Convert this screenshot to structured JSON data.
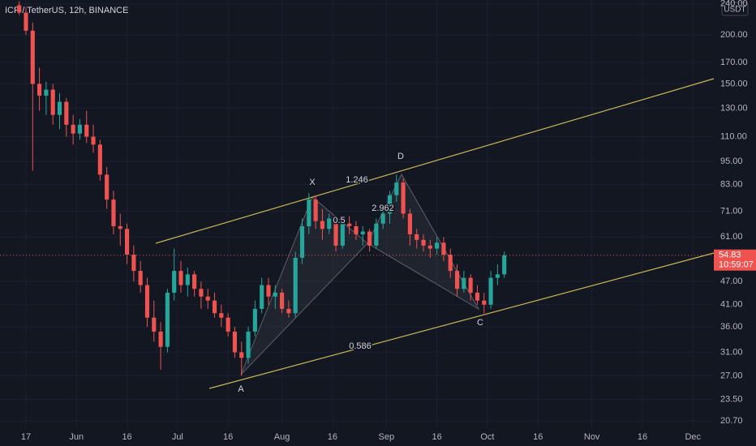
{
  "chart_data": {
    "type": "candlestick",
    "title": "ICP / TetherUS, 12h, BINANCE",
    "currency": "USDT",
    "log_scale": true,
    "grid": true,
    "up_color": "#26a69a",
    "down_color": "#ef5350",
    "x": [
      -2,
      0,
      2,
      4,
      6,
      8,
      10,
      12,
      14,
      16,
      18,
      20,
      22,
      24,
      26,
      28,
      30,
      32,
      34,
      36,
      38,
      40,
      42,
      44,
      46,
      48,
      50,
      52,
      54,
      56,
      58,
      60,
      62,
      64,
      66,
      68,
      70,
      72,
      74,
      76,
      78,
      80,
      82,
      84,
      86,
      88,
      90,
      92,
      94,
      96,
      98,
      100,
      102,
      104,
      106,
      108,
      110,
      112,
      114,
      116,
      118,
      120,
      122,
      124,
      126,
      128,
      130,
      132,
      134,
      136,
      138,
      140,
      142
    ],
    "open": [
      238,
      228,
      205,
      150,
      140,
      145,
      125,
      135,
      118,
      112,
      118,
      110,
      105,
      88,
      76,
      65,
      64,
      55,
      50,
      46,
      38,
      35,
      32,
      44,
      50,
      46,
      49,
      45,
      43,
      42,
      39,
      38,
      35,
      31,
      30,
      35,
      40,
      46,
      43,
      44,
      40,
      39,
      54,
      65,
      76,
      67,
      64,
      68,
      58,
      66,
      65,
      62,
      63,
      58,
      66,
      70,
      78,
      84,
      70,
      62,
      60,
      58,
      57,
      59,
      55,
      50,
      45,
      48,
      44,
      42,
      41,
      48,
      49
    ],
    "high": [
      244,
      235,
      215,
      165,
      152,
      150,
      142,
      138,
      125,
      122,
      128,
      118,
      108,
      92,
      80,
      70,
      66,
      58,
      53,
      48,
      42,
      37,
      45,
      57,
      53,
      51,
      50,
      47,
      45,
      44,
      41,
      39,
      36,
      33,
      36,
      42,
      48,
      48,
      46,
      45,
      42,
      56,
      68,
      79,
      78,
      72,
      70,
      69,
      68,
      69,
      67,
      65,
      64,
      68,
      73,
      80,
      88,
      86,
      72,
      64,
      62,
      60,
      61,
      61,
      57,
      52,
      50,
      49,
      46,
      44,
      50,
      52,
      56
    ],
    "low": [
      225,
      200,
      90,
      128,
      125,
      118,
      115,
      110,
      105,
      108,
      106,
      100,
      85,
      72,
      62,
      58,
      52,
      47,
      44,
      36,
      33,
      28,
      31,
      42,
      44,
      43,
      43,
      40,
      40,
      38,
      36,
      34,
      30,
      27,
      29,
      34,
      39,
      41,
      40,
      39,
      38,
      38,
      52,
      62,
      64,
      60,
      62,
      56,
      57,
      62,
      60,
      58,
      56,
      57,
      64,
      66,
      75,
      68,
      58,
      57,
      56,
      54,
      55,
      53,
      48,
      43,
      44,
      42,
      41,
      39,
      40,
      46,
      48
    ],
    "close": [
      228,
      205,
      150,
      140,
      145,
      125,
      135,
      118,
      112,
      118,
      110,
      105,
      88,
      76,
      65,
      64,
      55,
      50,
      46,
      38,
      35,
      32,
      44,
      50,
      46,
      49,
      45,
      43,
      42,
      39,
      38,
      35,
      31,
      30,
      35,
      40,
      46,
      43,
      44,
      40,
      39,
      54,
      65,
      76,
      67,
      64,
      68,
      58,
      66,
      65,
      62,
      63,
      58,
      66,
      70,
      78,
      84,
      70,
      62,
      60,
      58,
      57,
      59,
      55,
      50,
      45,
      48,
      44,
      42,
      41,
      48,
      49,
      54.83
    ],
    "xlim": [
      -7.7,
      204.2
    ],
    "xticks": [
      {
        "value": 0,
        "label": "17"
      },
      {
        "value": 15,
        "label": "Jun"
      },
      {
        "value": 30,
        "label": "16"
      },
      {
        "value": 45,
        "label": "Jul"
      },
      {
        "value": 60,
        "label": "16"
      },
      {
        "value": 76,
        "label": "Aug"
      },
      {
        "value": 91,
        "label": "16"
      },
      {
        "value": 107,
        "label": "Sep"
      },
      {
        "value": 122,
        "label": "16"
      },
      {
        "value": 137,
        "label": "Oct"
      },
      {
        "value": 152,
        "label": "16"
      },
      {
        "value": 168,
        "label": "Nov"
      },
      {
        "value": 183,
        "label": "16"
      },
      {
        "value": 198,
        "label": "Dec"
      }
    ],
    "ylim": [
      19.85,
      245.5
    ],
    "yticks": [
      {
        "value": 20.7,
        "label": "20.70"
      },
      {
        "value": 23.5,
        "label": "23.50"
      },
      {
        "value": 27,
        "label": "27.00"
      },
      {
        "value": 31,
        "label": "31.00"
      },
      {
        "value": 36,
        "label": "36.00"
      },
      {
        "value": 41,
        "label": "41.00"
      },
      {
        "value": 47,
        "label": "47.00"
      },
      {
        "value": 61,
        "label": "61.00"
      },
      {
        "value": 71,
        "label": "71.00"
      },
      {
        "value": 83,
        "label": "83.00"
      },
      {
        "value": 95,
        "label": "95.00"
      },
      {
        "value": 110,
        "label": "110.00"
      },
      {
        "value": 130,
        "label": "130.00"
      },
      {
        "value": 150,
        "label": "150.00"
      },
      {
        "value": 170,
        "label": "170.00"
      },
      {
        "value": 200,
        "label": "200.00"
      },
      {
        "value": 240,
        "label": "240.00"
      }
    ],
    "last_price": {
      "value": 54.83,
      "label": "54.83"
    },
    "countdown": "10:59:07",
    "annotations": [
      "X",
      "A",
      "D",
      "C",
      "1.246",
      "0.5",
      "2.962",
      "0.586"
    ]
  }
}
